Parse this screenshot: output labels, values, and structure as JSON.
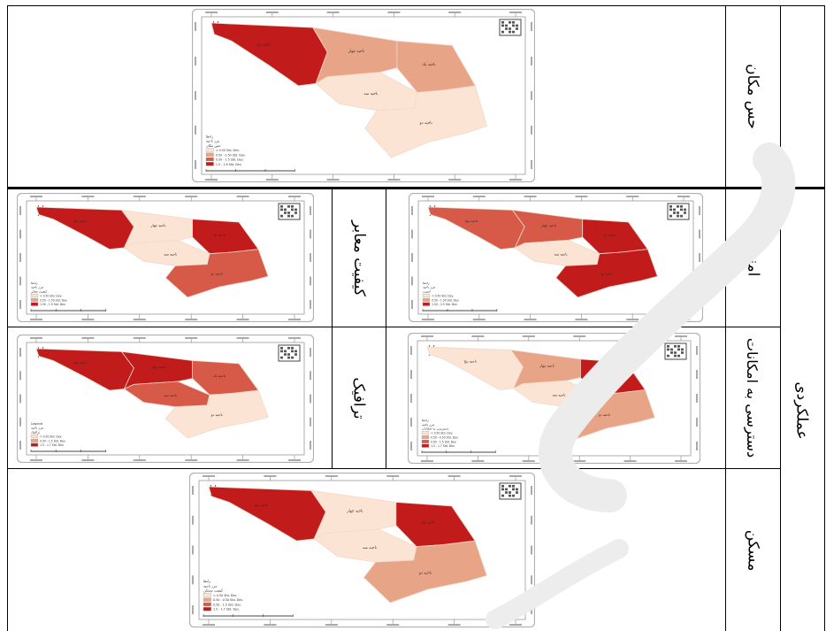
{
  "row_labels": {
    "sense_of_place": "حس مکان",
    "performance": "عملکردی",
    "security": "امنیت",
    "path_quality": "کیفیت معابر",
    "access": "دسترسی به امکانات",
    "traffic": "ترافیک",
    "housing": "مسکن"
  },
  "colors": {
    "class1": "#fbe4d3",
    "class2": "#e8a487",
    "class3": "#d65a47",
    "class4": "#c21b1b",
    "frame": "#b0b0b0"
  },
  "maps": [
    {
      "id": "sense_of_place",
      "legend_title": "راه‌ها",
      "legend_sub": "مرز ناحیه",
      "legend_field": "حس مکان",
      "legend_items": [
        "< 0.50 Std. Dev.",
        "0.50 - 0.50 Std. Dev.",
        "0.50 - 1.5 Std. Dev.",
        "1.5 - 1.8 Std. Dev."
      ],
      "districts": {
        "five": 4,
        "four": 2,
        "one": 2,
        "three": 1,
        "two": 1
      }
    },
    {
      "id": "path_quality",
      "legend_title": "راه‌ها",
      "legend_sub": "مرز ناحیه",
      "legend_field": "کیفیت معابر",
      "legend_items": [
        "< 0.50 Std. Dev.",
        "0.50 - 1.50 Std. Dev.",
        "1.50 - 1.9 Std. Dev."
      ],
      "districts": {
        "five": 4,
        "four": 1,
        "one": 4,
        "three": 1,
        "two": 3
      }
    },
    {
      "id": "security",
      "legend_title": "راه‌ها",
      "legend_sub": "مرز ناحیه",
      "legend_field": "امنیت",
      "legend_items": [
        "< 0.50 Std. Dev.",
        "0.50 - 1.50 Std. Dev.",
        "1.50 - 2.5 Std. Dev."
      ],
      "districts": {
        "five": 3,
        "four": 3,
        "one": 4,
        "three": 1,
        "two": 4
      }
    },
    {
      "id": "traffic",
      "legend_title": "Legend",
      "legend_sub": "مرز ناحیه",
      "legend_field": "ترافیک",
      "legend_items": [
        "< 0.50 Std. Dev.",
        "0.50 - 1.5 Std. Dev.",
        "1.5 - 1.7 Std. Dev."
      ],
      "districts": {
        "five": 4,
        "four": 4,
        "one": 3,
        "three": 3,
        "two": 1
      }
    },
    {
      "id": "access",
      "legend_title": "راه‌ها",
      "legend_sub": "مرز ناحیه",
      "legend_field": "دسترسی به امکانات",
      "legend_items": [
        "< 0.50 Std. Dev.",
        "0.50 - 0.50 Std. Dev.",
        "0.50 - 1.5 Std. Dev.",
        "1.5 - 1.7 Std. Dev."
      ],
      "districts": {
        "five": 1,
        "four": 2,
        "one": 4,
        "three": 1,
        "two": 2
      }
    },
    {
      "id": "housing",
      "legend_title": "راه‌ها",
      "legend_sub": "مرز ناحیه",
      "legend_field": "کیفیت مسکن",
      "legend_items": [
        "< 0.50 Std. Dev.",
        "0.50 - 0.50 Std. Dev.",
        "0.50 - 1.5 Std. Dev.",
        "1.5 - 1.7 Std. Dev."
      ],
      "districts": {
        "five": 4,
        "four": 1,
        "one": 4,
        "three": 1,
        "two": 2
      }
    }
  ],
  "district_names": {
    "five": "ناحیه پنج",
    "four": "ناحیه چهار",
    "one": "ناحیه یک",
    "three": "ناحیه سه",
    "two": "ناحیه دو"
  },
  "north_label": "N"
}
